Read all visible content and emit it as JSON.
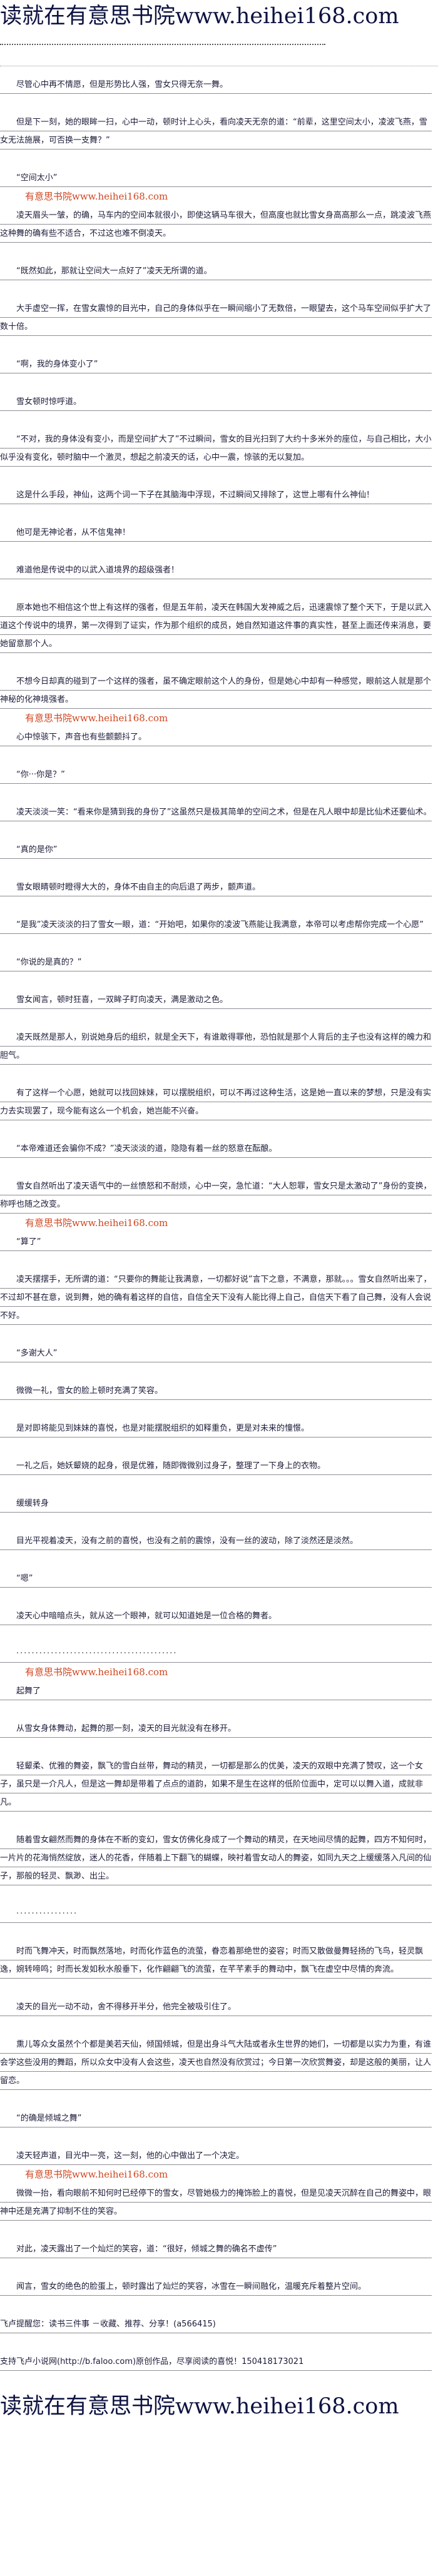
{
  "banner": {
    "text": "读就在有意思书院www.heihei168.com"
  },
  "watermark": {
    "text": "有意思书院www.heihei168.com"
  },
  "paragraphs": [
    "尽管心中再不情愿，但是形势比人强，雪女只得无奈一舞。",
    "但是下一刻，她的眼眸一扫，心中一动，顿时计上心头，看向凌天无奈的道：“前辈，这里空间太小，凌波飞燕，雪女无法施展，可否换一支舞？”",
    "“空间太小”",
    "凌天眉头一皱，的确，马车内的空间本就很小，即使这辆马车很大，但高度也就比雪女身高高那么一点，跳凌波飞燕这种舞的确有些不适合，不过这也难不倒凌天。",
    "“既然如此，那就让空间大一点好了”凌天无所谓的道。",
    "大手虚空一挥，在雪女震惊的目光中，自己的身体似乎在一瞬间缩小了无数倍，一眼望去，这个马车空间似乎扩大了数十倍。",
    "“啊，我的身体变小了”",
    "雪女顿时惊呼道。",
    "“不对，我的身体没有变小，而是空间扩大了”不过瞬间，雪女的目光扫到了大约十多米外的座位，与自己相比，大小似乎没有变化，顿时脑中一个激灵，想起之前凌天的话，心中一震，惊骇的无以复加。",
    "这是什么手段，神仙，这两个词一下子在其脑海中浮现，不过瞬间又排除了，这世上哪有什么神仙！",
    "他可是无神论者，从不信鬼神！",
    "难道他是传说中的以武入道境界的超级强者！",
    "原本她也不相信这个世上有这样的强者，但是五年前，凌天在韩国大发神威之后，迅速震惊了整个天下，于是以武入道这个传说中的境界，第一次得到了证实，作为那个组织的成员，她自然知道这件事的真实性，甚至上面还传来消息，要她留意那个人。",
    "不想今日却真的碰到了一个这样的强者，虽不确定眼前这个人的身份，但是她心中却有一种感觉，眼前这人就是那个神秘的化神境强者。",
    "心中惊骇下，声音也有些颤颤抖了。",
    "“你···你是？”",
    "凌天淡淡一笑：“看来你是猜到我的身份了”这虽然只是极其简单的空间之术，但是在凡人眼中却是比仙术还要仙术。",
    "“真的是你”",
    "雪女眼睛顿时瞪得大大的，身体不由自主的向后退了两步，颤声道。",
    "“是我”凌天淡淡的扫了雪女一眼，道：“开始吧，如果你的凌波飞燕能让我满意，本帝可以考虑帮你完成一个心愿”",
    "“你说的是真的？”",
    "雪女闻言，顿时狂喜，一双眸子盯向凌天，满是激动之色。",
    "凌天既然是那人，别说她身后的组织，就是全天下，有谁敢得罪他，恐怕就是那个人背后的主子也没有这样的魄力和胆气。",
    "有了这样一个心愿，她就可以找回妹妹，可以摆脱组织，可以不再过这种生活，这是她一直以来的梦想，只是没有实力去实现罢了，现今能有这么一个机会，她岂能不兴奋。",
    "“本帝难道还会骗你不成？”凌天淡淡的道，隐隐有着一丝的怒意在酝酿。",
    "雪女自然听出了凌天语气中的一丝愤怒和不耐烦，心中一突，急忙道：“大人恕罪，雪女只是太激动了”身份的变换，称呼也随之改变。",
    "“算了”",
    "凌天摆摆手，无所谓的道：“只要你的舞能让我满意，一切都好说”言下之意，不满意，那就。。。雪女自然听出来了，不过却不甚在意，说到舞，她的确有着这样的自信，自信全天下没有人能比得上自己，自信天下看了自己舞，没有人会说不好。",
    "“多谢大人”",
    "微微一礼，雪女的脸上顿时充满了笑容。",
    "是对即将能见到妹妹的喜悦，也是对能摆脱组织的如释重负，更是对未来的憧憬。",
    "一礼之后，她妖颦娆的起身，很是优雅，随即微微别过身子，整理了一下身上的衣物。",
    "缓缓转身",
    "目光平视着凌天，没有之前的喜悦，也没有之前的震惊，没有一丝的波动，除了淡然还是淡然。",
    "“嗯”",
    "凌天心中暗暗点头，就从这一个眼神，就可以知道她是一位合格的舞者。",
    "··········································",
    "起舞了",
    "从雪女身体舞动，起舞的那一刻，凌天的目光就没有在移开。",
    "轻颦柔、优雅的舞姿，飘飞的雪白丝带，舞动的精灵，一切都是那么的优美，凌天的双眼中充满了赞叹，这一个女子，虽只是一介凡人，但是这一舞却是带着了点点的道韵，如果不是生在这样的低阶位面中，定可以以舞入道，成就非凡。",
    "随着雪女翩然而舞的身体在不断的变幻，雪女仿佛化身成了一个舞动的精灵，在天地间尽情的起舞，四方不知何时，一片片的花海悄然绽放，迷人的花香，伴随着上下翻飞的蝴蝶，映衬着雪女动人的舞姿，如同九天之上缓缓落入凡间的仙子，那般的轻灵、飘渺、出尘。",
    "················",
    "时而飞舞冲天，时而飘然落地，时而化作蓝色的流萤，眷恋着那绝世的姿容；时而又散做曼舞轻扬的飞鸟，轻灵飘逸，婉转啼鸣；时而长发如秋水般垂下，化作翩翩飞的流萤，在芊芊素手的舞动中，飘飞在虚空中尽情的奔流。",
    "凌天的目光一动不动，舍不得移开半分，他完全被吸引住了。",
    "熏儿等众女虽然个个都是美若天仙，倾国倾城，但是出身斗气大陆或者永生世界的她们，一切都是以实力为重，有谁会学这些没用的舞蹈，所以众女中没有人会这些，凌天也自然没有欣赏过；今日第一次欣赏舞姿，却是这般的美丽，让人留恋。",
    "“的确是倾城之舞”",
    "凌天轻声道，目光中一亮，这一刻，他的心中做出了一个决定。",
    "微微一抬，看向眼前不知何时已经停下的雪女，尽管她极力的掩饰脸上的喜悦，但是见凌天沉醉在自己的舞姿中，眼神中还是充满了抑制不住的笑容。",
    "对此，凌天露出了一个灿烂的笑容，道：“很好，倾城之舞的确名不虚传”",
    "闻言，雪女的绝色的脸蛋上，顿时露出了灿烂的笑容，冰雪在一瞬间融化，温暖充斥着整片空间。"
  ],
  "footer": {
    "reminder": "飞卢提醒您：读书三件事 －收藏、推荐、分享！(a566415)",
    "support": "支持飞卢小说网(http://b.faloo.com)原创作品，尽享阅读的喜悦！150418173021"
  }
}
